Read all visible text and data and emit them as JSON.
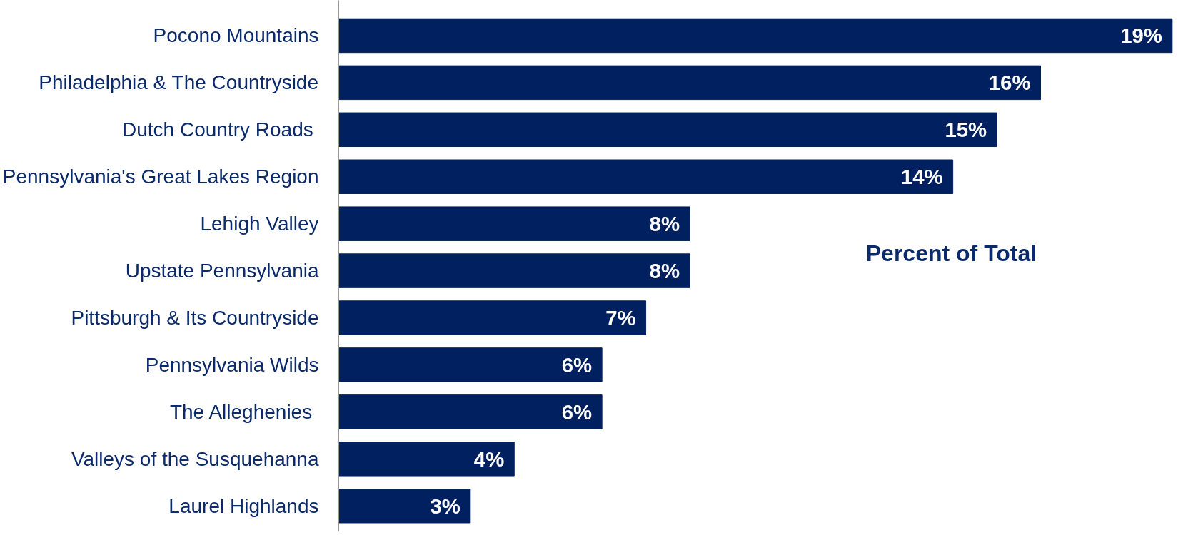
{
  "chart_data": {
    "type": "bar",
    "orientation": "horizontal",
    "categories": [
      "Pocono Mountains",
      "Philadelphia & The Countryside",
      "Dutch Country Roads ",
      "Pennsylvania's Great Lakes Region",
      "Lehigh Valley",
      "Upstate Pennsylvania",
      "Pittsburgh & Its Countryside",
      "Pennsylvania Wilds",
      "The Alleghenies ",
      "Valleys of the Susquehanna",
      "Laurel Highlands"
    ],
    "values": [
      19,
      16,
      15,
      14,
      8,
      8,
      7,
      6,
      6,
      4,
      3
    ],
    "value_labels": [
      "19%",
      "16%",
      "15%",
      "14%",
      "8%",
      "8%",
      "7%",
      "6%",
      "6%",
      "4%",
      "3%"
    ],
    "color": "#002060",
    "annotations": [
      "Percent of Total"
    ],
    "grid": false
  }
}
